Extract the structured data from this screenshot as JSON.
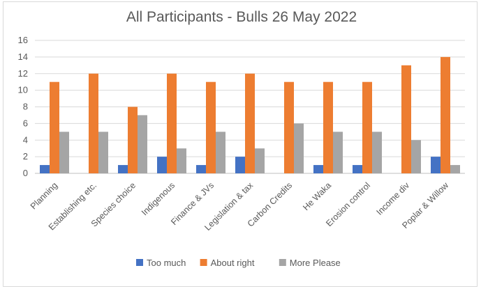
{
  "chart_data": {
    "type": "bar",
    "title": "All Participants - Bulls 26 May 2022",
    "categories": [
      "Planning",
      "Establishing etc.",
      "Species choice",
      "Indigenous",
      "Finance & JVs",
      "Legislation & tax",
      "Carbon Credits",
      "He Waka",
      "Erosion control",
      "Income div",
      "Poplar & Willow"
    ],
    "series": [
      {
        "name": "Too much",
        "color": "#4472c4",
        "values": [
          1,
          0,
          1,
          2,
          1,
          2,
          0,
          1,
          1,
          0,
          2
        ]
      },
      {
        "name": "About right",
        "color": "#ed7d31",
        "values": [
          11,
          12,
          8,
          12,
          11,
          12,
          11,
          11,
          11,
          13,
          14
        ]
      },
      {
        "name": "More Please",
        "color": "#a5a5a5",
        "values": [
          5,
          5,
          7,
          3,
          5,
          3,
          6,
          5,
          5,
          4,
          1
        ]
      }
    ],
    "ylim": [
      0,
      16
    ],
    "yticks": [
      0,
      2,
      4,
      6,
      8,
      10,
      12,
      14,
      16
    ],
    "grid": true,
    "legend_position": "bottom"
  }
}
